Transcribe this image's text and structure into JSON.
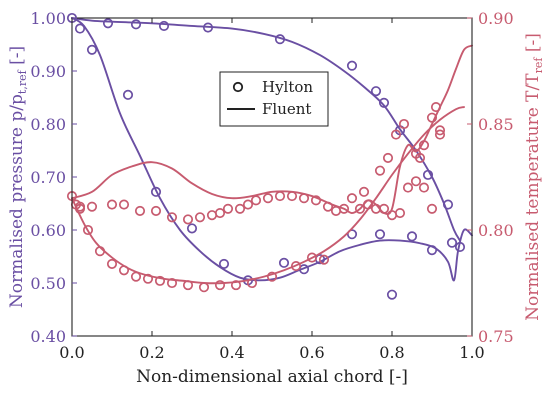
{
  "chart_data": {
    "type": "line",
    "xlabel": "Non-dimensional axial chord [-]",
    "ylabel_left": "Normalised pressure p/p",
    "ylabel_left_sub": "t,ref",
    "ylabel_left_suffix": " [-]",
    "ylabel_right": "Normalised temperature T/T",
    "ylabel_right_sub": "ref",
    "ylabel_right_suffix": " [-]",
    "xlim": [
      0.0,
      1.0
    ],
    "ylim_left": [
      0.4,
      1.0
    ],
    "ylim_right": [
      0.75,
      0.9
    ],
    "x_ticks": [
      "0.0",
      "0.2",
      "0.4",
      "0.6",
      "0.8",
      "1.0"
    ],
    "y_left_ticks": [
      "0.40",
      "0.50",
      "0.60",
      "0.70",
      "0.80",
      "0.90",
      "1.00"
    ],
    "y_right_ticks": [
      "0.75",
      "0.80",
      "0.85",
      "0.90"
    ],
    "legend": {
      "placement": "top-center",
      "entries": [
        {
          "label": "Hylton",
          "marker": "circle"
        },
        {
          "label": "Fluent",
          "marker": "line"
        }
      ]
    },
    "colors": {
      "pressure": "#6a4fa3",
      "temperature": "#c75b6f",
      "frame": "#222222"
    },
    "series": [
      {
        "name": "Hylton",
        "axis": "left",
        "style": "markers",
        "color": "#6a4fa3",
        "points": [
          [
            0.0,
            1.0
          ],
          [
            0.02,
            0.98
          ],
          [
            0.05,
            0.94
          ],
          [
            0.09,
            0.99
          ],
          [
            0.14,
            0.855
          ],
          [
            0.16,
            0.988
          ],
          [
            0.21,
            0.672
          ],
          [
            0.23,
            0.985
          ],
          [
            0.3,
            0.603
          ],
          [
            0.34,
            0.982
          ],
          [
            0.38,
            0.536
          ],
          [
            0.44,
            0.505
          ],
          [
            0.52,
            0.96
          ],
          [
            0.53,
            0.538
          ],
          [
            0.58,
            0.526
          ],
          [
            0.62,
            0.545
          ],
          [
            0.7,
            0.91
          ],
          [
            0.7,
            0.592
          ],
          [
            0.76,
            0.862
          ],
          [
            0.77,
            0.592
          ],
          [
            0.78,
            0.84
          ],
          [
            0.8,
            0.478
          ],
          [
            0.82,
            0.788
          ],
          [
            0.85,
            0.588
          ],
          [
            0.89,
            0.704
          ],
          [
            0.9,
            0.562
          ],
          [
            0.94,
            0.648
          ],
          [
            0.95,
            0.576
          ],
          [
            0.97,
            0.568
          ]
        ]
      },
      {
        "name": "Fluent",
        "axis": "left",
        "style": "line",
        "color": "#6a4fa3",
        "points": [
          [
            0.0,
            1.0
          ],
          [
            0.03,
            0.985
          ],
          [
            0.07,
            0.93
          ],
          [
            0.12,
            0.82
          ],
          [
            0.17,
            0.74
          ],
          [
            0.22,
            0.66
          ],
          [
            0.27,
            0.6
          ],
          [
            0.32,
            0.56
          ],
          [
            0.37,
            0.53
          ],
          [
            0.42,
            0.51
          ],
          [
            0.47,
            0.505
          ],
          [
            0.52,
            0.51
          ],
          [
            0.57,
            0.525
          ],
          [
            0.62,
            0.54
          ],
          [
            0.67,
            0.56
          ],
          [
            0.72,
            0.572
          ],
          [
            0.77,
            0.58
          ],
          [
            0.82,
            0.58
          ],
          [
            0.87,
            0.575
          ],
          [
            0.91,
            0.565
          ],
          [
            0.94,
            0.54
          ],
          [
            0.955,
            0.505
          ],
          [
            0.965,
            0.56
          ],
          [
            0.98,
            0.6
          ],
          [
            1.0,
            0.59
          ]
        ]
      },
      {
        "name": "Hylton",
        "axis": "left",
        "style": "line",
        "color": "#6a4fa3",
        "points": [
          [
            0.0,
            1.0
          ],
          [
            0.05,
            0.995
          ],
          [
            0.1,
            0.993
          ],
          [
            0.2,
            0.99
          ],
          [
            0.3,
            0.985
          ],
          [
            0.4,
            0.98
          ],
          [
            0.48,
            0.97
          ],
          [
            0.55,
            0.955
          ],
          [
            0.62,
            0.93
          ],
          [
            0.68,
            0.9
          ],
          [
            0.73,
            0.87
          ],
          [
            0.78,
            0.835
          ],
          [
            0.82,
            0.79
          ],
          [
            0.86,
            0.75
          ],
          [
            0.9,
            0.7
          ],
          [
            0.93,
            0.65
          ],
          [
            0.955,
            0.6
          ],
          [
            0.97,
            0.58
          ]
        ]
      },
      {
        "name": "Hylton",
        "axis": "right",
        "style": "markers",
        "color": "#c75b6f",
        "points": [
          [
            0.0,
            0.816
          ],
          [
            0.01,
            0.812
          ],
          [
            0.02,
            0.811
          ],
          [
            0.05,
            0.811
          ],
          [
            0.1,
            0.812
          ],
          [
            0.13,
            0.812
          ],
          [
            0.17,
            0.809
          ],
          [
            0.21,
            0.809
          ],
          [
            0.25,
            0.806
          ],
          [
            0.29,
            0.805
          ],
          [
            0.32,
            0.806
          ],
          [
            0.35,
            0.807
          ],
          [
            0.37,
            0.808
          ],
          [
            0.39,
            0.81
          ],
          [
            0.42,
            0.81
          ],
          [
            0.44,
            0.812
          ],
          [
            0.46,
            0.814
          ],
          [
            0.49,
            0.815
          ],
          [
            0.52,
            0.816
          ],
          [
            0.55,
            0.816
          ],
          [
            0.58,
            0.815
          ],
          [
            0.61,
            0.814
          ],
          [
            0.64,
            0.811
          ],
          [
            0.66,
            0.809
          ],
          [
            0.68,
            0.81
          ],
          [
            0.72,
            0.81
          ],
          [
            0.74,
            0.812
          ],
          [
            0.76,
            0.81
          ],
          [
            0.78,
            0.81
          ],
          [
            0.8,
            0.807
          ],
          [
            0.82,
            0.808
          ],
          [
            0.84,
            0.82
          ],
          [
            0.86,
            0.823
          ],
          [
            0.88,
            0.82
          ],
          [
            0.9,
            0.81
          ],
          [
            0.92,
            0.847
          ],
          [
            0.92,
            0.845
          ],
          [
            0.02,
            0.81
          ],
          [
            0.04,
            0.8
          ],
          [
            0.07,
            0.79
          ],
          [
            0.1,
            0.784
          ],
          [
            0.13,
            0.781
          ],
          [
            0.16,
            0.778
          ],
          [
            0.19,
            0.777
          ],
          [
            0.22,
            0.776
          ],
          [
            0.25,
            0.775
          ],
          [
            0.29,
            0.774
          ],
          [
            0.33,
            0.773
          ],
          [
            0.37,
            0.774
          ],
          [
            0.41,
            0.774
          ],
          [
            0.45,
            0.775
          ],
          [
            0.5,
            0.778
          ],
          [
            0.56,
            0.783
          ],
          [
            0.6,
            0.787
          ],
          [
            0.63,
            0.786
          ],
          [
            0.7,
            0.815
          ],
          [
            0.73,
            0.818
          ],
          [
            0.77,
            0.828
          ],
          [
            0.79,
            0.834
          ],
          [
            0.81,
            0.845
          ],
          [
            0.83,
            0.85
          ],
          [
            0.86,
            0.836
          ],
          [
            0.87,
            0.834
          ],
          [
            0.88,
            0.84
          ],
          [
            0.9,
            0.853
          ],
          [
            0.91,
            0.858
          ]
        ]
      },
      {
        "name": "Fluent",
        "axis": "right",
        "style": "line",
        "color": "#c75b6f",
        "points": [
          [
            0.0,
            0.815
          ],
          [
            0.05,
            0.818
          ],
          [
            0.1,
            0.826
          ],
          [
            0.15,
            0.83
          ],
          [
            0.2,
            0.832
          ],
          [
            0.25,
            0.829
          ],
          [
            0.3,
            0.822
          ],
          [
            0.35,
            0.817
          ],
          [
            0.4,
            0.815
          ],
          [
            0.45,
            0.816
          ],
          [
            0.5,
            0.818
          ],
          [
            0.55,
            0.818
          ],
          [
            0.6,
            0.816
          ],
          [
            0.65,
            0.812
          ],
          [
            0.68,
            0.81
          ],
          [
            0.7,
            0.808
          ],
          [
            0.72,
            0.81
          ],
          [
            0.74,
            0.814
          ],
          [
            0.76,
            0.812
          ],
          [
            0.78,
            0.808
          ],
          [
            0.8,
            0.81
          ],
          [
            0.82,
            0.83
          ],
          [
            0.84,
            0.84
          ],
          [
            0.86,
            0.837
          ],
          [
            0.88,
            0.842
          ],
          [
            0.9,
            0.85
          ],
          [
            0.92,
            0.858
          ],
          [
            0.94,
            0.866
          ],
          [
            0.96,
            0.876
          ],
          [
            0.98,
            0.885
          ],
          [
            1.0,
            0.887
          ]
        ]
      },
      {
        "name": "Fluent",
        "axis": "right",
        "style": "line",
        "color": "#c75b6f",
        "points": [
          [
            0.0,
            0.815
          ],
          [
            0.03,
            0.803
          ],
          [
            0.06,
            0.794
          ],
          [
            0.1,
            0.787
          ],
          [
            0.14,
            0.782
          ],
          [
            0.18,
            0.779
          ],
          [
            0.23,
            0.777
          ],
          [
            0.28,
            0.776
          ],
          [
            0.33,
            0.775
          ],
          [
            0.38,
            0.775
          ],
          [
            0.43,
            0.776
          ],
          [
            0.48,
            0.778
          ],
          [
            0.53,
            0.781
          ],
          [
            0.58,
            0.785
          ],
          [
            0.63,
            0.79
          ],
          [
            0.68,
            0.797
          ],
          [
            0.72,
            0.805
          ],
          [
            0.76,
            0.815
          ],
          [
            0.8,
            0.826
          ],
          [
            0.84,
            0.836
          ],
          [
            0.88,
            0.845
          ],
          [
            0.92,
            0.852
          ],
          [
            0.96,
            0.857
          ],
          [
            0.98,
            0.858
          ]
        ]
      }
    ]
  }
}
